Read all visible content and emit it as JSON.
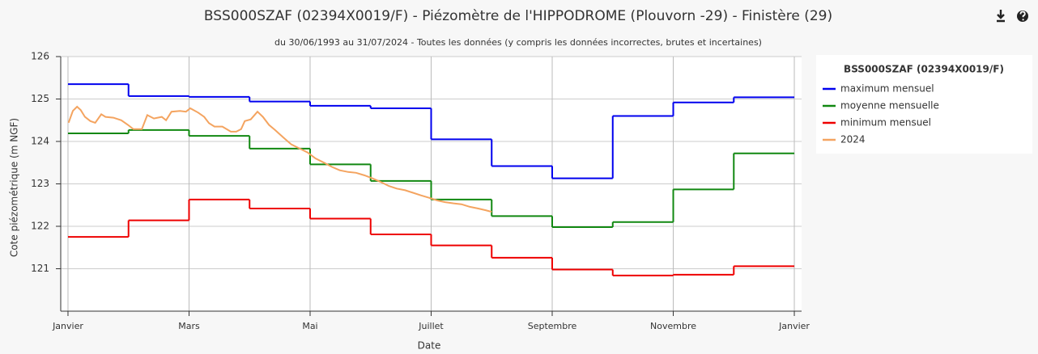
{
  "chart_data": {
    "type": "line",
    "title": "BSS000SZAF (02394X0019/F) - Piézomètre de l'HIPPODROME (Plouvorn -29) - Finistère (29)",
    "subtitle": "du 30/06/1993 au 31/07/2024 - Toutes les données (y compris les données incorrectes, brutes et incertaines)",
    "x_label": "Date",
    "y_label": "Cote piézométrique (m NGF)",
    "legend_title": "BSS000SZAF (02394X0019/F)",
    "legend": "right",
    "grid": true,
    "xlim": [
      -0.12,
      12.12
    ],
    "xticks": [
      {
        "value": 0,
        "label": "Janvier"
      },
      {
        "value": 2,
        "label": "Mars"
      },
      {
        "value": 4,
        "label": "Mai"
      },
      {
        "value": 6,
        "label": "Juillet"
      },
      {
        "value": 8,
        "label": "Septembre"
      },
      {
        "value": 10,
        "label": "Novembre"
      },
      {
        "value": 12,
        "label": "Janvier"
      }
    ],
    "ylim": [
      120,
      126
    ],
    "yticks": [
      121,
      122,
      123,
      124,
      125,
      126
    ],
    "series": [
      {
        "name": "maximum mensuel",
        "color": "#0000ee",
        "step": true,
        "values": [
          125.35,
          125.07,
          125.05,
          124.94,
          124.84,
          124.78,
          124.05,
          123.42,
          123.13,
          124.6,
          124.92,
          125.04
        ]
      },
      {
        "name": "moyenne mensuelle",
        "color": "#118811",
        "step": true,
        "values": [
          124.19,
          124.27,
          124.13,
          123.83,
          123.46,
          123.07,
          122.63,
          122.24,
          121.98,
          122.1,
          122.87,
          123.72
        ]
      },
      {
        "name": "minimum mensuel",
        "color": "#ee0000",
        "step": true,
        "values": [
          121.75,
          122.14,
          122.63,
          122.42,
          122.18,
          121.81,
          121.55,
          121.26,
          120.98,
          120.84,
          120.86,
          121.06
        ]
      },
      {
        "name": "2024",
        "color": "#f4a460",
        "x": [
          0.01,
          0.08,
          0.15,
          0.21,
          0.28,
          0.37,
          0.45,
          0.55,
          0.62,
          0.75,
          0.88,
          0.99,
          1.08,
          1.22,
          1.31,
          1.42,
          1.55,
          1.62,
          1.71,
          1.85,
          1.95,
          2.02,
          2.15,
          2.25,
          2.33,
          2.42,
          2.55,
          2.69,
          2.78,
          2.86,
          2.92,
          3.02,
          3.13,
          3.22,
          3.32,
          3.42,
          3.56,
          3.69,
          3.83,
          3.96,
          4.09,
          4.23,
          4.36,
          4.49,
          4.63,
          4.76,
          4.9,
          5.03,
          5.16,
          5.3,
          5.43,
          5.57,
          5.7,
          5.83,
          5.97,
          6.1,
          6.23,
          6.37,
          6.5,
          6.64,
          6.77,
          6.9,
          7.0
        ],
        "values": [
          124.44,
          124.72,
          124.82,
          124.74,
          124.58,
          124.48,
          124.44,
          124.64,
          124.58,
          124.56,
          124.5,
          124.39,
          124.29,
          124.29,
          124.62,
          124.54,
          124.58,
          124.5,
          124.7,
          124.72,
          124.7,
          124.78,
          124.68,
          124.58,
          124.43,
          124.35,
          124.35,
          124.23,
          124.23,
          124.29,
          124.48,
          124.52,
          124.7,
          124.58,
          124.39,
          124.27,
          124.09,
          123.93,
          123.83,
          123.74,
          123.6,
          123.5,
          123.4,
          123.32,
          123.28,
          123.26,
          123.2,
          123.13,
          123.05,
          122.95,
          122.89,
          122.85,
          122.79,
          122.73,
          122.67,
          122.61,
          122.57,
          122.54,
          122.52,
          122.46,
          122.42,
          122.38,
          122.34
        ]
      }
    ]
  }
}
